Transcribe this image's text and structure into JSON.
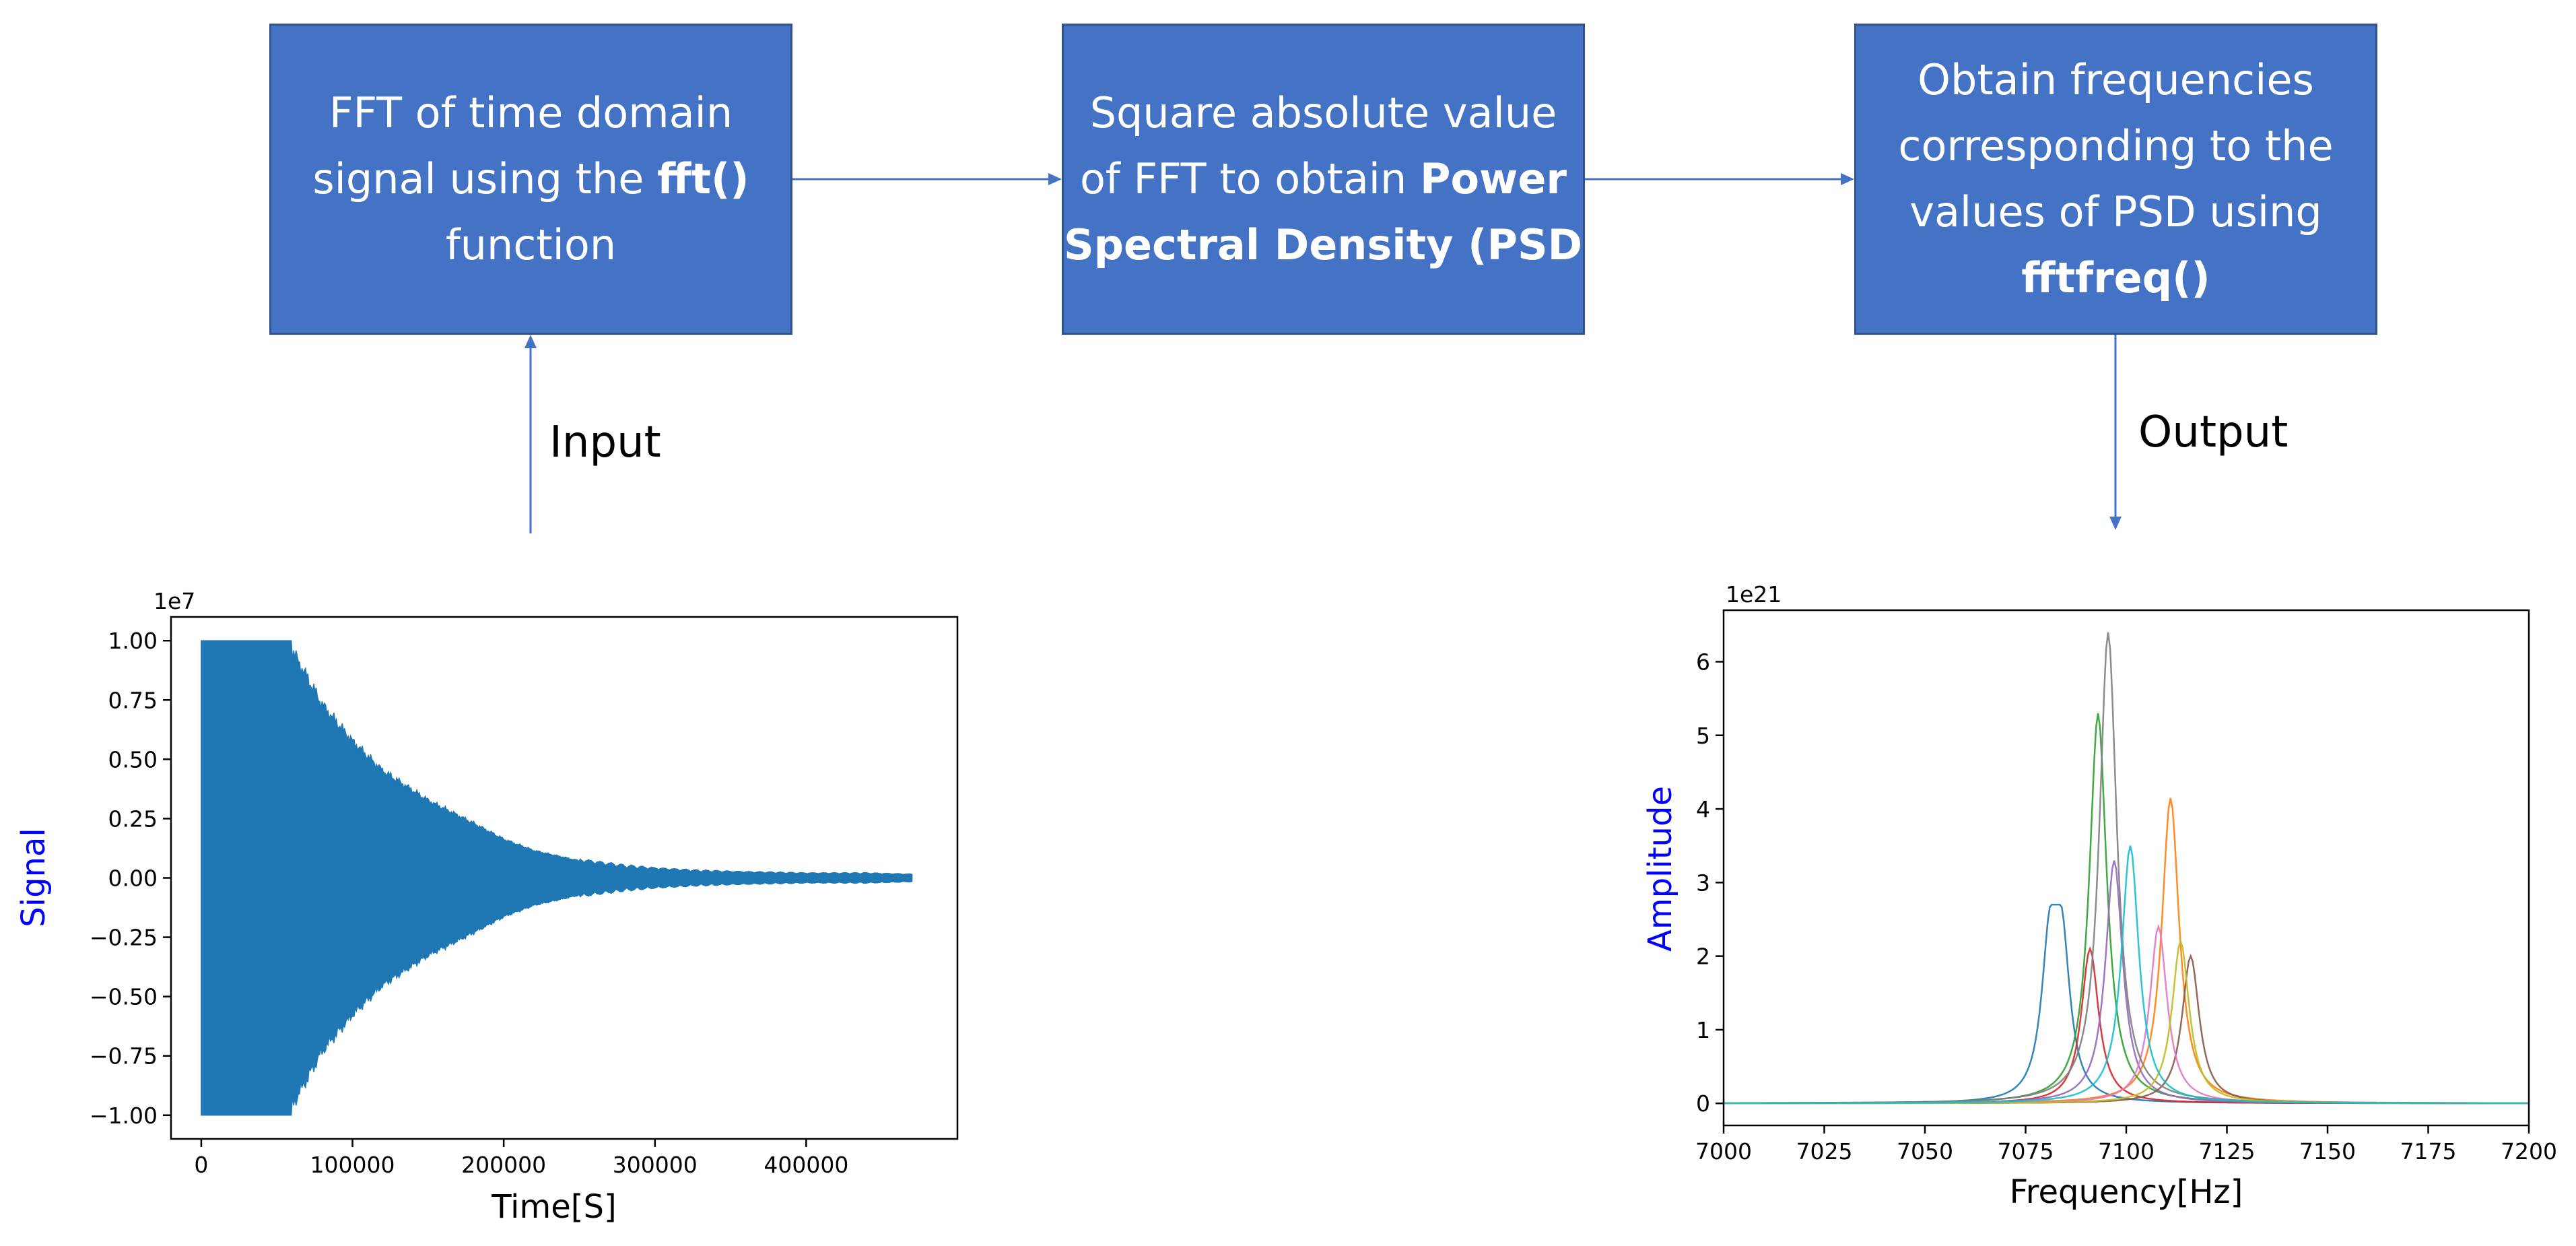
{
  "flow": {
    "box1": {
      "line1": "FFT of time domain",
      "line2_prefix": "signal using the ",
      "line2_bold": "fft()",
      "line3": "function"
    },
    "box2": {
      "line1": "Square absolute value",
      "line2_prefix": "of FFT to obtain ",
      "line2_bold": "Power",
      "line3_bold": "Spectral Density (PSD)"
    },
    "box3": {
      "line1": "Obtain frequencies",
      "line2": "corresponding to the",
      "line3": "values of PSD using",
      "line4_bold": "fftfreq()"
    },
    "input_label": "Input",
    "output_label": "Output",
    "colors": {
      "box_fill": "#4472c4",
      "box_border": "#2f528f",
      "arrow": "#4472c4",
      "axis_label": "#0000ff"
    }
  },
  "chart_data": [
    {
      "type": "area",
      "offset_label": "1e7",
      "xlabel": "Time[S]",
      "ylabel": "Signal",
      "xlim": [
        -20000,
        500000
      ],
      "ylim": [
        -1.1,
        1.1
      ],
      "xticks": [
        0,
        100000,
        200000,
        300000,
        400000
      ],
      "xtick_labels": [
        "0",
        "100000",
        "200000",
        "300000",
        "400000"
      ],
      "yticks": [
        1.0,
        0.75,
        0.5,
        0.25,
        0.0,
        -0.25,
        -0.5,
        -0.75,
        -1.0
      ],
      "ytick_labels": [
        "1.00",
        "0.75",
        "0.50",
        "0.25",
        "0.00",
        "−0.25",
        "−0.50",
        "−0.75",
        "−1.00"
      ],
      "color": "#1f77b4",
      "envelope_x": [
        0,
        60000,
        70000,
        80000,
        100000,
        120000,
        150000,
        180000,
        200000,
        220000,
        250000,
        280000,
        300000,
        330000,
        360000,
        400000,
        440000,
        470000
      ],
      "envelope_y": [
        1.0,
        1.0,
        0.88,
        0.76,
        0.6,
        0.47,
        0.34,
        0.24,
        0.17,
        0.12,
        0.075,
        0.05,
        0.04,
        0.03,
        0.025,
        0.02,
        0.02,
        0.015
      ]
    },
    {
      "type": "line",
      "offset_label": "1e21",
      "xlabel": "Frequency[Hz]",
      "ylabel": "Amplitude",
      "xlim": [
        7000,
        7200
      ],
      "ylim": [
        -0.3,
        6.7
      ],
      "xticks": [
        7000,
        7025,
        7050,
        7075,
        7100,
        7125,
        7150,
        7175,
        7200
      ],
      "xtick_labels": [
        "7000",
        "7025",
        "7050",
        "7075",
        "7100",
        "7125",
        "7150",
        "7175",
        "7200"
      ],
      "yticks": [
        0,
        1,
        2,
        3,
        4,
        5,
        6
      ],
      "ytick_labels": [
        "0",
        "1",
        "2",
        "3",
        "4",
        "5",
        "6"
      ],
      "series": [
        {
          "center": 7082.5,
          "peak": 2.7,
          "color": "#1f77b4",
          "flat": true
        },
        {
          "center": 7111,
          "peak": 4.15,
          "color": "#ff7f0e"
        },
        {
          "center": 7093,
          "peak": 5.3,
          "color": "#2ca02c"
        },
        {
          "center": 7091,
          "peak": 2.1,
          "color": "#d62728"
        },
        {
          "center": 7097,
          "peak": 3.3,
          "color": "#9467bd"
        },
        {
          "center": 7116,
          "peak": 2.0,
          "color": "#8c564b"
        },
        {
          "center": 7108,
          "peak": 2.4,
          "color": "#e377c2"
        },
        {
          "center": 7095.5,
          "peak": 6.4,
          "color": "#7f7f7f"
        },
        {
          "center": 7113.5,
          "peak": 2.2,
          "color": "#bcbd22"
        },
        {
          "center": 7101,
          "peak": 3.5,
          "color": "#17becf"
        }
      ]
    }
  ]
}
